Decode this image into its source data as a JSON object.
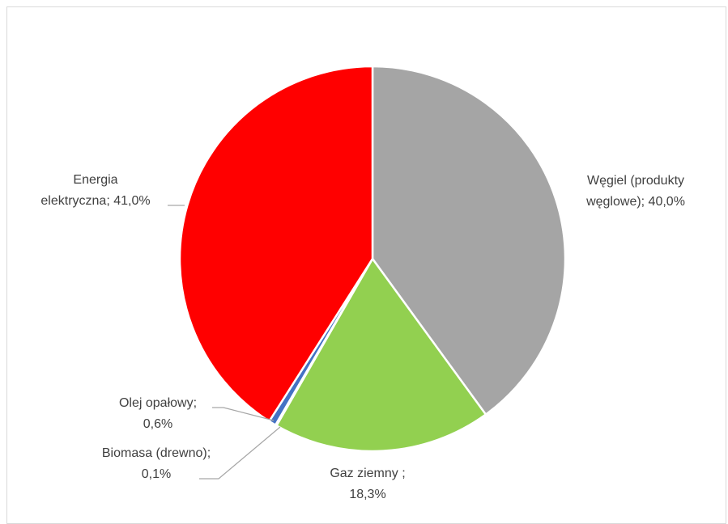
{
  "chart_data": {
    "type": "pie",
    "slices": [
      {
        "label_lines": [
          "Węgiel (produkty",
          "węglowe); 40,0%"
        ],
        "value": 40.0,
        "color": "#a5a5a5"
      },
      {
        "label_lines": [
          "Gaz ziemny ;",
          "18,3%"
        ],
        "value": 18.3,
        "color": "#92d050"
      },
      {
        "label_lines": [
          "Biomasa (drewno);",
          "0,1%"
        ],
        "value": 0.1,
        "color": "#ed7d31"
      },
      {
        "label_lines": [
          "Olej opałowy;",
          "0,6%"
        ],
        "value": 0.6,
        "color": "#4472c4"
      },
      {
        "label_lines": [
          "Energia",
          "elektryczna; 41,0%"
        ],
        "value": 41.0,
        "color": "#ff0000"
      }
    ],
    "start_angle_deg": 0,
    "direction": "clockwise",
    "title": "",
    "legend": "none"
  }
}
